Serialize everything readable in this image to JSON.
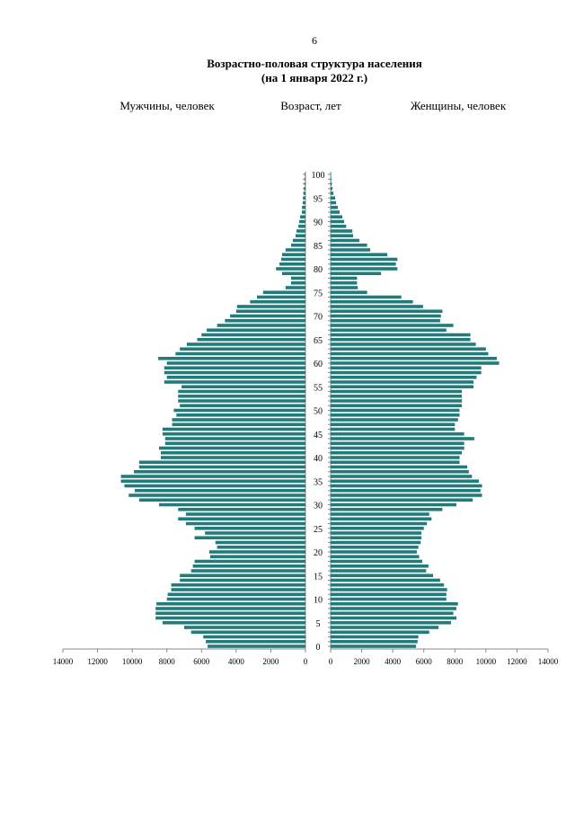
{
  "page_number": "6",
  "chart_data": {
    "type": "pyramid",
    "title": "Возрастно-половая структура населения",
    "subtitle": "(на 1 января 2022 г.)",
    "category_label": "Возраст, лет",
    "categories": [
      0,
      null,
      null,
      null,
      null,
      5,
      null,
      null,
      null,
      null,
      10,
      null,
      null,
      null,
      null,
      15,
      null,
      null,
      null,
      null,
      20,
      null,
      null,
      null,
      null,
      25,
      null,
      null,
      null,
      null,
      30,
      null,
      null,
      null,
      null,
      35,
      null,
      null,
      null,
      null,
      40,
      null,
      null,
      null,
      null,
      45,
      null,
      null,
      null,
      null,
      50,
      null,
      null,
      null,
      null,
      55,
      null,
      null,
      null,
      null,
      60,
      null,
      null,
      null,
      null,
      65,
      null,
      null,
      null,
      null,
      70,
      null,
      null,
      null,
      null,
      75,
      null,
      null,
      null,
      null,
      80,
      null,
      null,
      null,
      null,
      85,
      null,
      null,
      null,
      null,
      90,
      null,
      null,
      null,
      null,
      95,
      null,
      null,
      null,
      null,
      100
    ],
    "series": [
      {
        "name": "Мужчины, человек",
        "color": "#217b7b",
        "side": "left",
        "values": [
          5650,
          5750,
          5900,
          6600,
          7000,
          8250,
          8650,
          8650,
          8650,
          8600,
          8000,
          7950,
          7750,
          7750,
          7250,
          7250,
          6600,
          6500,
          6400,
          5500,
          5550,
          5100,
          5200,
          6400,
          5800,
          6400,
          6900,
          7350,
          6900,
          7350,
          8450,
          9600,
          10200,
          9850,
          10450,
          10650,
          10650,
          9900,
          9600,
          9600,
          8350,
          8350,
          8450,
          8100,
          8100,
          8250,
          8250,
          7700,
          7700,
          7450,
          7600,
          7250,
          7350,
          7350,
          7350,
          7150,
          8150,
          8000,
          8150,
          8150,
          8000,
          8500,
          7500,
          7250,
          6850,
          6250,
          6000,
          5700,
          5100,
          4650,
          4350,
          4000,
          3950,
          3200,
          2800,
          2450,
          1150,
          830,
          830,
          1350,
          1700,
          1500,
          1400,
          1350,
          1150,
          830,
          730,
          570,
          520,
          410,
          360,
          310,
          210,
          200,
          160,
          140,
          110,
          90,
          60,
          50,
          40
        ]
      },
      {
        "name": "Женщины, человек",
        "color": "#217b7b",
        "side": "right",
        "values": [
          5500,
          5600,
          5650,
          6350,
          6950,
          7750,
          8100,
          7900,
          8100,
          8200,
          7450,
          7450,
          7500,
          7300,
          7050,
          6600,
          6150,
          6300,
          5900,
          5700,
          5550,
          5650,
          5800,
          5850,
          5850,
          6000,
          6200,
          6500,
          6350,
          7200,
          8100,
          9150,
          9750,
          9650,
          9750,
          9550,
          9100,
          8900,
          8800,
          8300,
          8300,
          8450,
          8600,
          8600,
          9250,
          8600,
          8000,
          8000,
          8200,
          8300,
          8300,
          8450,
          8450,
          8450,
          8450,
          9200,
          9200,
          9400,
          9700,
          9700,
          10850,
          10700,
          10150,
          10000,
          9350,
          9000,
          9000,
          7450,
          7900,
          7050,
          7100,
          7200,
          5950,
          5300,
          4550,
          2350,
          1750,
          1700,
          1700,
          3250,
          4300,
          4200,
          4300,
          3650,
          2550,
          2350,
          1850,
          1450,
          1400,
          1000,
          870,
          750,
          580,
          460,
          350,
          290,
          180,
          120,
          80,
          50,
          30
        ]
      }
    ],
    "xlim": [
      0,
      14000
    ],
    "xticks": [
      0,
      2000,
      4000,
      6000,
      8000,
      10000,
      12000,
      14000
    ]
  }
}
